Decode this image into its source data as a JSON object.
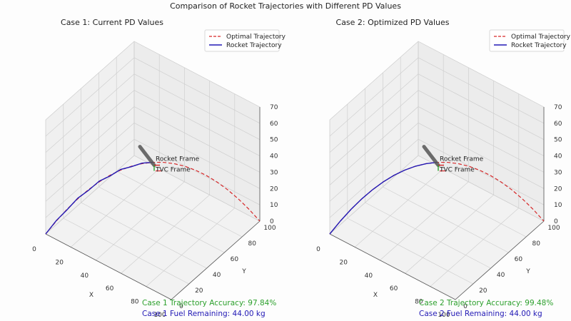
{
  "figure": {
    "title": "Comparison of Rocket Trajectories with Different PD Values",
    "legend": [
      "Optimal Trajectory",
      "Rocket Trajectory"
    ],
    "annotations": [
      "Rocket Frame",
      "TVC Frame"
    ],
    "axis_labels": {
      "x": "X",
      "y": "Y"
    },
    "colors": {
      "optimal": "#d62728",
      "rocket": "#2219b5",
      "accuracy": "#2ca02c",
      "fuel": "#2219b5",
      "rocket_body": "#555555",
      "frame_red": "#d62728",
      "frame_green": "#2ca02c"
    }
  },
  "chart_data": [
    {
      "type": "line",
      "projection": "3d",
      "title": "Case 1: Current PD Values",
      "xlabel": "X",
      "ylabel": "Y",
      "zlabel": "",
      "xlim": [
        0,
        100
      ],
      "ylim": [
        0,
        100
      ],
      "zlim": [
        0,
        70
      ],
      "x_ticks": [
        0,
        20,
        40,
        60,
        80,
        100
      ],
      "y_ticks": [
        0,
        20,
        40,
        60,
        80,
        100
      ],
      "z_ticks": [
        0,
        10,
        20,
        30,
        40,
        50,
        60,
        70
      ],
      "grid": true,
      "legend_position": "top-right",
      "series": [
        {
          "name": "Optimal Trajectory",
          "style": "dashed",
          "color": "#d62728",
          "x": [
            0,
            5,
            10,
            15,
            20,
            25,
            30,
            35,
            40,
            45,
            50,
            55,
            60,
            65,
            70,
            75,
            80,
            85,
            90,
            95,
            100
          ],
          "y": [
            0,
            5,
            10,
            15,
            20,
            25,
            30,
            35,
            40,
            45,
            50,
            55,
            60,
            65,
            70,
            75,
            80,
            85,
            90,
            95,
            100
          ],
          "z": [
            0,
            7.6,
            14.4,
            20.4,
            25.6,
            30,
            33.6,
            36.4,
            38.4,
            39.6,
            40,
            39.6,
            38.4,
            36.4,
            33.6,
            30,
            25.6,
            20.4,
            14.4,
            7.6,
            0
          ]
        },
        {
          "name": "Rocket Trajectory",
          "style": "solid",
          "color": "#2219b5",
          "x": [
            0,
            5,
            10,
            15,
            20,
            25,
            30,
            35,
            40,
            45,
            50
          ],
          "y": [
            0,
            5,
            10,
            15,
            20,
            25,
            30,
            35,
            40,
            45,
            50
          ],
          "z": [
            0,
            7.9,
            14.1,
            20.8,
            25.2,
            30.4,
            33.2,
            36.8,
            38.1,
            39.9,
            40
          ]
        }
      ],
      "stats": {
        "accuracy": "Case 1 Trajectory Accuracy: 97.84%",
        "fuel": "Case 1 Fuel Remaining: 44.00 kg"
      }
    },
    {
      "type": "line",
      "projection": "3d",
      "title": "Case 2: Optimized PD Values",
      "xlabel": "X",
      "ylabel": "Y",
      "zlabel": "",
      "xlim": [
        0,
        100
      ],
      "ylim": [
        0,
        100
      ],
      "zlim": [
        0,
        70
      ],
      "x_ticks": [
        0,
        20,
        40,
        60,
        80,
        100
      ],
      "y_ticks": [
        0,
        20,
        40,
        60,
        80,
        100
      ],
      "z_ticks": [
        0,
        10,
        20,
        30,
        40,
        50,
        60,
        70
      ],
      "grid": true,
      "legend_position": "top-right",
      "series": [
        {
          "name": "Optimal Trajectory",
          "style": "dashed",
          "color": "#d62728",
          "x": [
            0,
            5,
            10,
            15,
            20,
            25,
            30,
            35,
            40,
            45,
            50,
            55,
            60,
            65,
            70,
            75,
            80,
            85,
            90,
            95,
            100
          ],
          "y": [
            0,
            5,
            10,
            15,
            20,
            25,
            30,
            35,
            40,
            45,
            50,
            55,
            60,
            65,
            70,
            75,
            80,
            85,
            90,
            95,
            100
          ],
          "z": [
            0,
            7.6,
            14.4,
            20.4,
            25.6,
            30,
            33.6,
            36.4,
            38.4,
            39.6,
            40,
            39.6,
            38.4,
            36.4,
            33.6,
            30,
            25.6,
            20.4,
            14.4,
            7.6,
            0
          ]
        },
        {
          "name": "Rocket Trajectory",
          "style": "solid",
          "color": "#2219b5",
          "x": [
            0,
            5,
            10,
            15,
            20,
            25,
            30,
            35,
            40,
            45,
            50
          ],
          "y": [
            0,
            5,
            10,
            15,
            20,
            25,
            30,
            35,
            40,
            45,
            50
          ],
          "z": [
            0,
            7.6,
            14.4,
            20.4,
            25.6,
            30,
            33.6,
            36.4,
            38.4,
            39.6,
            40
          ]
        }
      ],
      "stats": {
        "accuracy": "Case 2 Trajectory Accuracy: 99.48%",
        "fuel": "Case 2 Fuel Remaining: 44.00 kg"
      }
    }
  ]
}
